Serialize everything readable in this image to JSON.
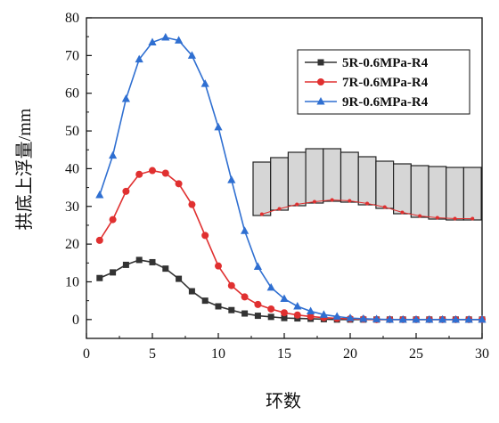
{
  "chart_data": {
    "type": "line",
    "xlabel": "环数",
    "ylabel": "拱底上浮量/mm",
    "xlim": [
      0,
      30
    ],
    "ylim": [
      -5,
      80
    ],
    "xticks": [
      0,
      5,
      10,
      15,
      20,
      25,
      30
    ],
    "yticks": [
      0,
      10,
      20,
      30,
      40,
      50,
      60,
      70,
      80
    ],
    "grid": false,
    "legend_position": "top-right",
    "x": [
      1,
      2,
      3,
      4,
      5,
      6,
      7,
      8,
      9,
      10,
      11,
      12,
      13,
      14,
      15,
      16,
      17,
      18,
      19,
      20,
      21,
      22,
      23,
      24,
      25,
      26,
      27,
      28,
      29,
      30
    ],
    "series": [
      {
        "name": "5R-0.6MPa-R4",
        "color": "#333333",
        "marker": "square",
        "values": [
          11,
          12.5,
          14.5,
          15.8,
          15.2,
          13.5,
          10.8,
          7.5,
          5,
          3.5,
          2.5,
          1.6,
          1,
          0.7,
          0.4,
          0.3,
          0.2,
          0.1,
          0,
          0,
          0,
          0,
          0,
          0,
          0,
          0,
          0,
          0,
          0,
          0
        ]
      },
      {
        "name": "7R-0.6MPa-R4",
        "color": "#e03030",
        "marker": "circle",
        "values": [
          21,
          26.5,
          34,
          38.5,
          39.5,
          38.8,
          36,
          30.5,
          22.3,
          14.2,
          9,
          6,
          4,
          2.8,
          1.8,
          1.2,
          0.8,
          0.5,
          0.3,
          0.2,
          0.1,
          0,
          0,
          0,
          0,
          0,
          0,
          0,
          0,
          0
        ]
      },
      {
        "name": "9R-0.6MPa-R4",
        "color": "#2f6fd1",
        "marker": "triangle",
        "values": [
          33,
          43.5,
          58.5,
          69,
          73.5,
          74.8,
          74,
          70,
          62.5,
          51,
          37,
          23.5,
          14,
          8.5,
          5.5,
          3.5,
          2.2,
          1.3,
          0.8,
          0.4,
          0.2,
          0.1,
          0,
          0,
          0,
          0,
          0,
          0,
          0,
          0
        ]
      }
    ]
  },
  "inset": {
    "description_free": true,
    "segments": 13
  }
}
